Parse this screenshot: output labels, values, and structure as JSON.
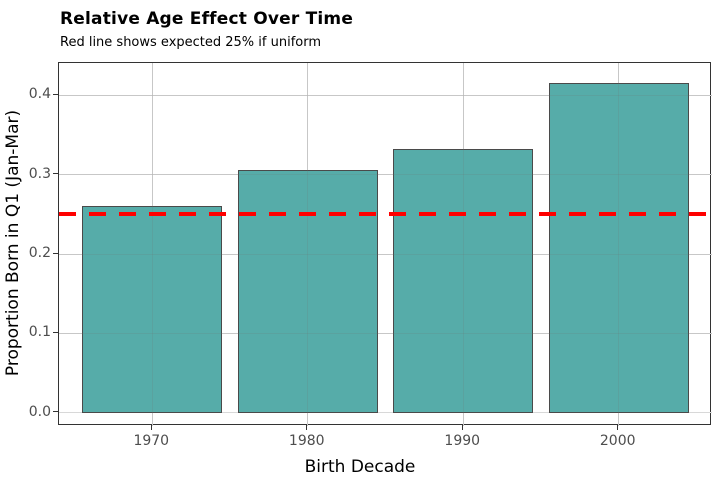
{
  "figure": {
    "title": "Relative Age Effect Over Time",
    "subtitle": "Red line shows expected 25% if uniform"
  },
  "chart_data": {
    "type": "bar",
    "title": "Relative Age Effect Over Time",
    "subtitle": "Red line shows expected 25% if uniform",
    "categories": [
      "1970",
      "1980",
      "1990",
      "2000"
    ],
    "values": [
      0.26,
      0.306,
      0.333,
      0.416
    ],
    "xlabel": "Birth Decade",
    "ylabel": "Proportion Born in Q1 (Jan-Mar)",
    "yticks": [
      0.0,
      0.1,
      0.2,
      0.3,
      0.4
    ],
    "ytick_labels": [
      "0.0",
      "0.1",
      "0.2",
      "0.3",
      "0.4"
    ],
    "ylim": [
      -0.017,
      0.441
    ],
    "bar_width_fraction": 0.9,
    "grid": "major-only",
    "legend": false,
    "reference_line": {
      "value": 0.25,
      "style": "dashed",
      "color": "#FF0000",
      "label": "expected 25% if uniform"
    },
    "colors": {
      "bar_fill": "#56ACA9",
      "bar_border": "#4A4A4A",
      "gridline": "#D8D8D8",
      "grid_overlay": "rgba(110,110,110,0.16)",
      "panel_border": "#333333",
      "tick_mark": "#333333",
      "tick_label": "#4D4D4D",
      "axis_title": "#000000",
      "background": "#FFFFFF"
    }
  }
}
